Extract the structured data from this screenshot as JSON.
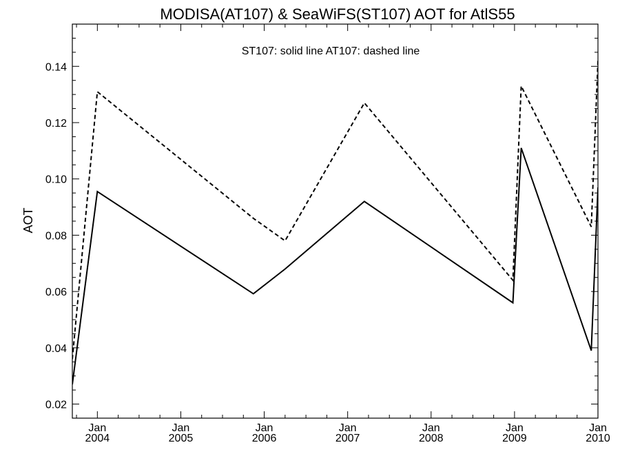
{
  "chart_data": {
    "type": "line",
    "title": "MODISA(AT107) & SeaWiFS(ST107)  AOT for AtlS55",
    "annotation": "ST107: solid line   AT107: dashed line",
    "xlabel": "",
    "ylabel": "AOT",
    "xlim": [
      2003.7,
      2010.0
    ],
    "ylim": [
      0.015,
      0.155
    ],
    "y_ticks": [
      0.02,
      0.04,
      0.06,
      0.08,
      0.1,
      0.12,
      0.14
    ],
    "y_tick_labels": [
      "0.02",
      "0.04",
      "0.06",
      "0.08",
      "0.10",
      "0.12",
      "0.14"
    ],
    "x_ticks": [
      {
        "value": 2004,
        "top": "Jan",
        "bottom": "2004"
      },
      {
        "value": 2005,
        "top": "Jan",
        "bottom": "2005"
      },
      {
        "value": 2006,
        "top": "Jan",
        "bottom": "2006"
      },
      {
        "value": 2007,
        "top": "Jan",
        "bottom": "2007"
      },
      {
        "value": 2008,
        "top": "Jan",
        "bottom": "2008"
      },
      {
        "value": 2009,
        "top": "Jan",
        "bottom": "2009"
      },
      {
        "value": 2010,
        "top": "Jan",
        "bottom": "2010"
      }
    ],
    "series": [
      {
        "name": "ST107",
        "style": "solid",
        "color": "#000000",
        "x": [
          2003.7,
          2004.0,
          2005.87,
          2006.25,
          2007.2,
          2008.98,
          2009.08,
          2009.92,
          2010.0
        ],
        "y": [
          0.027,
          0.0955,
          0.0592,
          0.068,
          0.092,
          0.056,
          0.111,
          0.039,
          0.097
        ]
      },
      {
        "name": "AT107",
        "style": "dashed",
        "color": "#000000",
        "x": [
          2003.7,
          2004.0,
          2005.87,
          2006.25,
          2007.2,
          2008.98,
          2009.08,
          2009.92,
          2010.0
        ],
        "y": [
          0.036,
          0.131,
          0.086,
          0.078,
          0.127,
          0.064,
          0.133,
          0.083,
          0.142
        ]
      }
    ]
  }
}
